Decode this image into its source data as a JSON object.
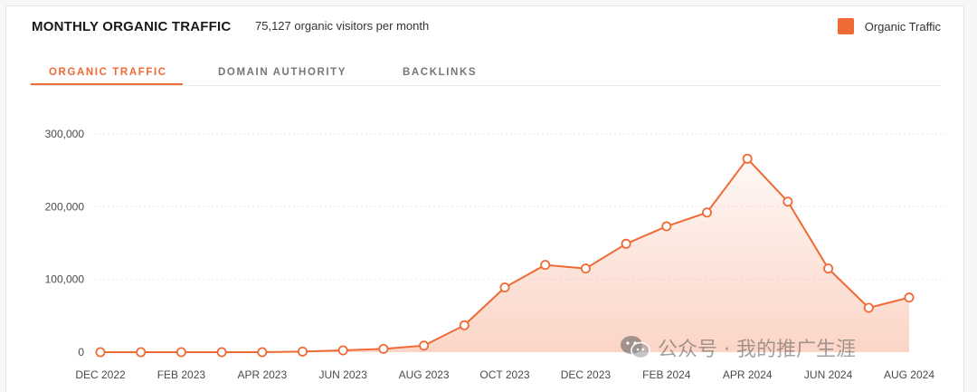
{
  "header": {
    "title": "MONTHLY ORGANIC TRAFFIC",
    "subtitle": "75,127 organic visitors per month"
  },
  "legend": {
    "label": "Organic Traffic",
    "color": "#f06a35"
  },
  "tabs": [
    {
      "label": "ORGANIC TRAFFIC",
      "active": true
    },
    {
      "label": "DOMAIN AUTHORITY",
      "active": false
    },
    {
      "label": "BACKLINKS",
      "active": false
    }
  ],
  "watermark": {
    "text": "公众号 · 我的推广生涯",
    "icon": "wechat-icon"
  },
  "chart_data": {
    "type": "area",
    "series": [
      {
        "name": "Organic Traffic",
        "color": "#f06a35",
        "values": [
          0,
          0,
          0,
          0,
          0,
          800,
          2500,
          4500,
          9000,
          37000,
          89000,
          120000,
          115000,
          149000,
          173000,
          192000,
          266000,
          207000,
          115000,
          61000,
          75127
        ]
      }
    ],
    "x": [
      "Dec 2022",
      "Jan 2023",
      "Feb 2023",
      "Mar 2023",
      "Apr 2023",
      "May 2023",
      "Jun 2023",
      "Jul 2023",
      "Aug 2023",
      "Sep 2023",
      "Oct 2023",
      "Nov 2023",
      "Dec 2023",
      "Jan 2024",
      "Feb 2024",
      "Mar 2024",
      "Apr 2024",
      "May 2024",
      "Jun 2024",
      "Jul 2024",
      "Aug 2024"
    ],
    "x_tick_labels": [
      "DEC 2022",
      "FEB 2023",
      "APR 2023",
      "JUN 2023",
      "AUG 2023",
      "OCT 2023",
      "DEC 2023",
      "FEB 2024",
      "APR 2024",
      "JUN 2024",
      "AUG 2024"
    ],
    "y_ticks": [
      0,
      100000,
      200000,
      300000
    ],
    "y_tick_labels": [
      "0",
      "100,000",
      "200,000",
      "300,000"
    ],
    "ylim": [
      0,
      300000
    ],
    "grid": true,
    "legend_position": "top-right"
  }
}
